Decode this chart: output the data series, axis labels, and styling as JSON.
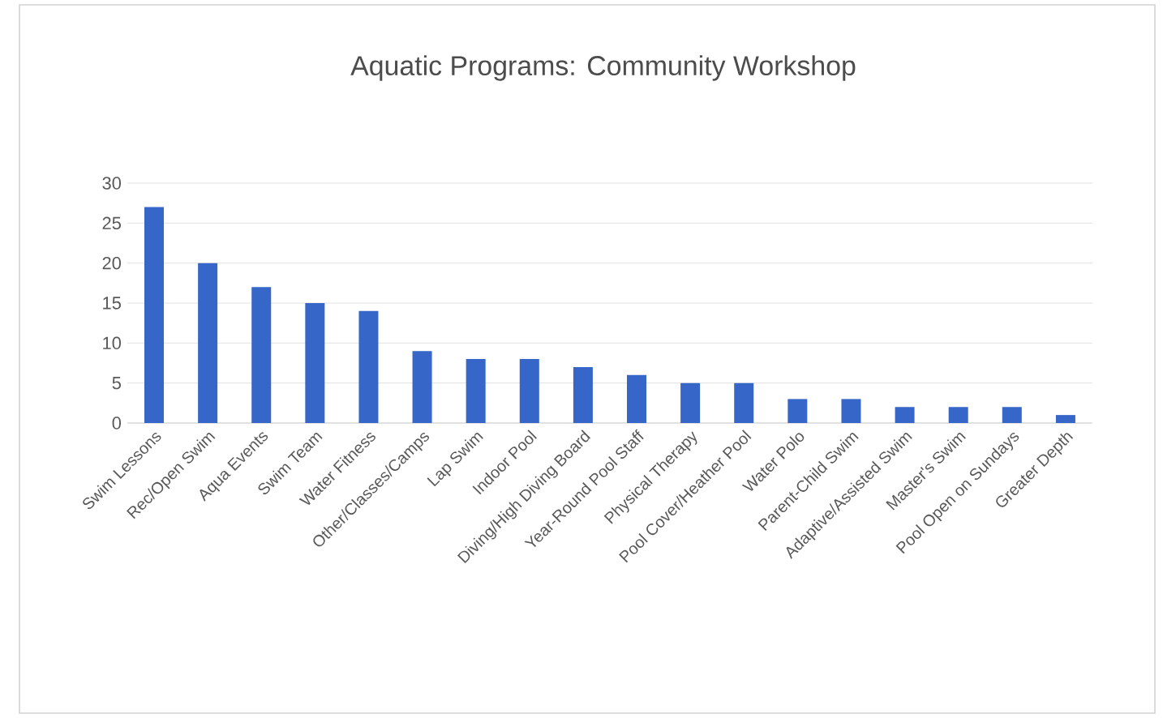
{
  "chart_data": {
    "type": "bar",
    "title": "Aquatic Programs: Community Workshop",
    "categories": [
      "Swim Lessons",
      "Rec/Open Swim",
      "Aqua Events",
      "Swim Team",
      "Water Fitness",
      "Other/Classes/Camps",
      "Lap Swim",
      "Indoor Pool",
      "Diving/High Diving Board",
      "Year-Round Pool Staff",
      "Physical Therapy",
      "Pool Cover/Heather Pool",
      "Water Polo",
      "Parent-Child Swim",
      "Adaptive/Assisted Swim",
      "Master's Swim",
      "Pool Open on Sundays",
      "Greater Depth"
    ],
    "values": [
      27,
      20,
      17,
      15,
      14,
      9,
      8,
      8,
      7,
      6,
      5,
      5,
      3,
      3,
      2,
      2,
      2,
      1
    ],
    "color": "#3566c8",
    "ylim": [
      0,
      30
    ],
    "yticks": [
      0,
      5,
      10,
      15,
      20,
      25,
      30
    ],
    "grid": "y"
  }
}
